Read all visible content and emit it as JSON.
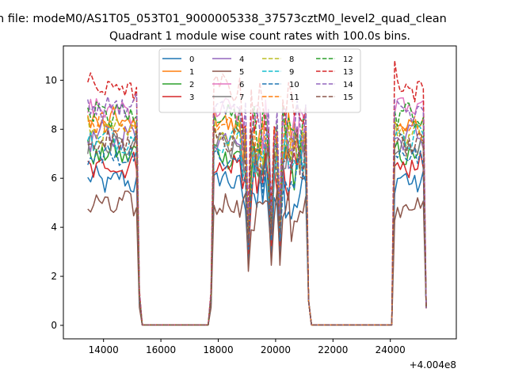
{
  "chart_data": {
    "type": "line",
    "suptitle": "n file: modeM0/AS1T05_053T01_9000005338_37573cztM0_level2_quad_clean",
    "title": "Quadrant 1 module wise count rates with 100.0s bins.",
    "xlabel": "",
    "ylabel": "",
    "x_offset_label": "+4.004e8",
    "xlim": [
      12600,
      26300
    ],
    "ylim": [
      -0.55,
      11.4
    ],
    "x_ticks": [
      14000,
      16000,
      18000,
      20000,
      22000,
      24000
    ],
    "x_tick_labels": [
      "14000",
      "16000",
      "18000",
      "20000",
      "22000",
      "24000"
    ],
    "y_ticks": [
      0,
      2,
      4,
      6,
      8,
      10
    ],
    "y_tick_labels": [
      "0",
      "2",
      "4",
      "6",
      "8",
      "10"
    ],
    "legend_position": "upper center",
    "segments": [
      {
        "x_start": 13450,
        "x_end": 15150,
        "step": 100
      },
      {
        "x_start": 15250,
        "x_end": 15350,
        "step": 100
      },
      {
        "x_start": 15350,
        "x_end": 17650,
        "step": 100
      },
      {
        "x_start": 17750,
        "x_end": 17850,
        "step": 100
      },
      {
        "x_start": 17850,
        "x_end": 21050,
        "step": 100
      },
      {
        "x_start": 21150,
        "x_end": 21250,
        "step": 100
      },
      {
        "x_start": 21250,
        "x_end": 24050,
        "step": 100
      },
      {
        "x_start": 24150,
        "x_end": 25250,
        "step": 100
      }
    ],
    "active_windows": [
      [
        13450,
        15150
      ],
      [
        17850,
        21050
      ],
      [
        24150,
        25150
      ]
    ],
    "series": [
      {
        "name": "0",
        "color": "#1f77b4",
        "dash": false,
        "base": 5.9
      },
      {
        "name": "1",
        "color": "#ff7f0e",
        "dash": false,
        "base": 8.3
      },
      {
        "name": "2",
        "color": "#2ca02c",
        "dash": false,
        "base": 7.0
      },
      {
        "name": "3",
        "color": "#d62728",
        "dash": false,
        "base": 6.5
      },
      {
        "name": "4",
        "color": "#9467bd",
        "dash": false,
        "base": 7.7
      },
      {
        "name": "5",
        "color": "#8c564b",
        "dash": false,
        "base": 4.9
      },
      {
        "name": "6",
        "color": "#e377c2",
        "dash": false,
        "base": 8.8
      },
      {
        "name": "7",
        "color": "#7f7f7f",
        "dash": false,
        "base": 7.3
      },
      {
        "name": "8",
        "color": "#bcbd22",
        "dash": true,
        "base": 7.9
      },
      {
        "name": "9",
        "color": "#17becf",
        "dash": true,
        "base": 7.6
      },
      {
        "name": "10",
        "color": "#1f77b4",
        "dash": true,
        "base": 6.9
      },
      {
        "name": "11",
        "color": "#ff7f0e",
        "dash": true,
        "base": 8.1
      },
      {
        "name": "12",
        "color": "#2ca02c",
        "dash": true,
        "base": 8.6
      },
      {
        "name": "13",
        "color": "#d62728",
        "dash": true,
        "base": 9.7
      },
      {
        "name": "14",
        "color": "#9467bd",
        "dash": true,
        "base": 8.9
      },
      {
        "name": "15",
        "color": "#8c564b",
        "dash": true,
        "base": 7.5
      }
    ]
  }
}
